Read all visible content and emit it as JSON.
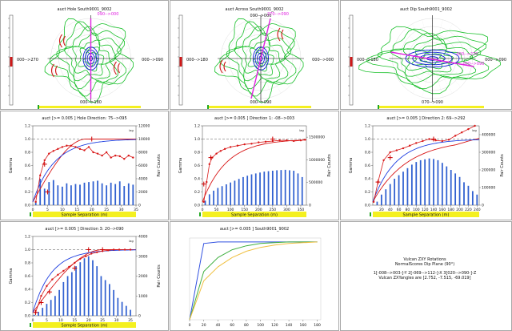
{
  "colors": {
    "contour_green": "#19c02a",
    "contour_blue": "#1020d8",
    "contour_red": "#d01818",
    "magenta": "#e020e0",
    "bar_blue": "#3060d0",
    "model_red": "#d81818",
    "model_blue": "#2040e0",
    "sill_gray": "#555555",
    "yellow_bar": "#f4f020"
  },
  "maps": [
    {
      "title": "auct Hole South9001_9002",
      "label_left": "000-->270",
      "label_right": "000-->090",
      "label_bottom": "000-->180",
      "label_top": "",
      "magenta_labels": [
        "090-->000"
      ]
    },
    {
      "title": "auct Across South9001_9002",
      "label_left": "000-->180",
      "label_right": "000-->000",
      "label_bottom": "000-->090",
      "label_top": "090-->000",
      "magenta_labels": [
        "270-->090"
      ]
    },
    {
      "title": "auct Dip South9001_9002",
      "label_left": "000-->180",
      "label_right": "000-->090",
      "label_bottom": "070-->090",
      "label_top": "",
      "magenta_labels": [
        "000-->270",
        "000-->090"
      ]
    }
  ],
  "charts": [
    {
      "title": "auct [>= 0.005 ] Hole Direction: 75-->095",
      "xlabel": "Sample Separation (m)",
      "ylabel": "Gamma",
      "y2label": "Pair Counts",
      "xlim": [
        0,
        35
      ],
      "xticks": [
        0,
        5,
        10,
        15,
        20,
        25,
        30,
        35
      ],
      "ylim": [
        0,
        1.2
      ],
      "yticks": [
        0,
        0.2,
        0.4,
        0.6,
        0.8,
        1.0,
        1.2
      ],
      "y2lim": [
        0,
        12000
      ],
      "y2ticks": [
        0,
        2000,
        4000,
        6000,
        8000,
        10000,
        12000
      ],
      "y2corner": "lag",
      "sill": 1.0,
      "bars": {
        "x": [
          1,
          2.5,
          4,
          5.5,
          7,
          8.5,
          10,
          11.5,
          13,
          14.5,
          16,
          17.5,
          19,
          20.5,
          22,
          23.5,
          25,
          26.5,
          28,
          29.5,
          31,
          32.5,
          34
        ],
        "counts": [
          600,
          4000,
          2500,
          3500,
          3800,
          3000,
          2800,
          3300,
          3000,
          3200,
          3100,
          3400,
          3500,
          3600,
          3700,
          3300,
          3000,
          3400,
          3200,
          3600,
          2900,
          3300,
          3100
        ]
      },
      "experimental": {
        "x": [
          1,
          2.5,
          4,
          5.5,
          7,
          8.5,
          10,
          11.5,
          13,
          14.5,
          16,
          17.5,
          19,
          20.5,
          22,
          23.5,
          25,
          26.5,
          28,
          29.5,
          31,
          32.5,
          34
        ],
        "gamma": [
          0.05,
          0.45,
          0.68,
          0.78,
          0.82,
          0.85,
          0.88,
          0.9,
          0.9,
          0.88,
          0.85,
          0.83,
          0.88,
          0.8,
          0.78,
          0.75,
          0.8,
          0.72,
          0.75,
          0.74,
          0.7,
          0.75,
          0.72
        ]
      },
      "model": [
        {
          "color": "model_red",
          "nugget": 0.05,
          "sill": 1.0,
          "range": 18,
          "style": "spherical"
        },
        {
          "color": "model_blue",
          "nugget": 0.05,
          "sill": 1.0,
          "range": 22,
          "style": "exp"
        }
      ],
      "crosses": {
        "x": [
          5,
          4,
          20
        ],
        "gamma": [
          0.2,
          0.62,
          1.0
        ]
      }
    },
    {
      "title": "auct [>= 0.005 ] Direction 1: -08-->003",
      "xlabel": "Sample Separation (m)",
      "ylabel": "Gamma",
      "y2label": "Pair Counts",
      "xlim": [
        0,
        370
      ],
      "xticks": [
        0,
        50,
        100,
        150,
        200,
        250,
        300,
        350
      ],
      "ylim": [
        0,
        1.2
      ],
      "yticks": [
        0,
        0.2,
        0.4,
        0.6,
        0.8,
        1.0,
        1.2
      ],
      "y2lim": [
        0,
        1750000
      ],
      "y2ticks": [
        0,
        500000,
        1000000,
        1500000
      ],
      "y2corner": "lag",
      "sill": 1.0,
      "bars": {
        "x": [
          10,
          25,
          40,
          55,
          70,
          85,
          100,
          115,
          130,
          145,
          160,
          175,
          190,
          205,
          220,
          235,
          250,
          265,
          280,
          295,
          310,
          325,
          340,
          355
        ],
        "counts": [
          100000,
          240000,
          320000,
          380000,
          420000,
          460000,
          500000,
          540000,
          580000,
          620000,
          650000,
          680000,
          700000,
          720000,
          740000,
          750000,
          760000,
          770000,
          775000,
          780000,
          770000,
          760000,
          700000,
          620000
        ]
      },
      "experimental": {
        "x": [
          5,
          15,
          25,
          35,
          50,
          65,
          80,
          100,
          125,
          150,
          175,
          200,
          225,
          250,
          275,
          300,
          325,
          350,
          365
        ],
        "gamma": [
          0.05,
          0.35,
          0.62,
          0.72,
          0.78,
          0.82,
          0.85,
          0.88,
          0.9,
          0.92,
          0.93,
          0.95,
          0.96,
          0.97,
          0.98,
          0.98,
          0.97,
          0.98,
          0.99
        ]
      },
      "model": [
        {
          "color": "model_red",
          "nugget": 0.05,
          "sill": 1.0,
          "range": 260,
          "style": "exp"
        }
      ],
      "crosses": {
        "x": [
          5,
          30,
          250
        ],
        "gamma": [
          0.32,
          0.72,
          1.0
        ]
      }
    },
    {
      "title": "auct [>= 0.005 ] Direction 2: 69-->292",
      "xlabel": "Sample Separation (m)",
      "ylabel": "Gamma",
      "y2label": "Pair Counts",
      "xlim": [
        0,
        245
      ],
      "xticks": [
        20,
        40,
        60,
        80,
        100,
        120,
        140,
        160,
        180,
        200,
        220,
        240
      ],
      "ylim": [
        0,
        1.2
      ],
      "yticks": [
        0,
        0.2,
        0.4,
        0.6,
        0.8,
        1.0,
        1.2
      ],
      "y2lim": [
        0,
        450000
      ],
      "y2ticks": [
        0,
        100000,
        200000,
        300000,
        400000
      ],
      "y2corner": "lag",
      "sill": 1.0,
      "bars": {
        "x": [
          10,
          20,
          30,
          40,
          50,
          60,
          70,
          80,
          90,
          100,
          110,
          120,
          130,
          140,
          150,
          160,
          170,
          180,
          190,
          200,
          210,
          220,
          230,
          240
        ],
        "counts": [
          20000,
          60000,
          90000,
          120000,
          150000,
          170000,
          190000,
          210000,
          230000,
          245000,
          255000,
          260000,
          265000,
          262000,
          255000,
          240000,
          220000,
          200000,
          180000,
          160000,
          130000,
          110000,
          80000,
          60000
        ]
      },
      "experimental": {
        "x": [
          2,
          12,
          25,
          40,
          55,
          70,
          85,
          100,
          115,
          130,
          145,
          160,
          175,
          190,
          205,
          220,
          235
        ],
        "gamma": [
          0.05,
          0.35,
          0.68,
          0.8,
          0.83,
          0.86,
          0.9,
          0.94,
          0.97,
          1.0,
          0.98,
          0.97,
          0.99,
          1.05,
          1.1,
          1.15,
          1.2
        ]
      },
      "model": [
        {
          "color": "model_red",
          "nugget": 0.05,
          "sill": 1.2,
          "range": 240,
          "style": "rising"
        },
        {
          "color": "model_blue",
          "nugget": 0.05,
          "sill": 1.0,
          "range": 160,
          "style": "exp"
        }
      ],
      "crosses": {
        "x": [
          12,
          40,
          140
        ],
        "gamma": [
          0.35,
          0.72,
          1.0
        ]
      }
    },
    {
      "title": "auct [>= 0.005 ] Direction 3: 20-->090",
      "xlabel": "Sample Separation (m)",
      "ylabel": "Gamma",
      "y2label": "Pair Counts",
      "xlim": [
        0,
        37
      ],
      "xticks": [
        0,
        5,
        10,
        15,
        20,
        25,
        30,
        35
      ],
      "ylim": [
        0,
        1.2
      ],
      "yticks": [
        0,
        0.2,
        0.4,
        0.6,
        0.8,
        1.0,
        1.2
      ],
      "y2lim": [
        0,
        4000
      ],
      "y2ticks": [
        0,
        1000,
        2000,
        3000,
        4000
      ],
      "y2corner": "lag",
      "sill": 1.0,
      "bars": {
        "x": [
          0.5,
          2,
          3.5,
          5,
          6.5,
          8,
          9.5,
          11,
          12.5,
          14,
          15.5,
          17,
          18.5,
          20,
          21.5,
          23,
          24.5,
          26,
          27.5,
          29,
          30.5,
          32,
          33.5,
          35
        ],
        "counts": [
          50,
          200,
          400,
          600,
          800,
          1000,
          1300,
          1700,
          2000,
          2200,
          2500,
          2700,
          2900,
          3000,
          2800,
          2500,
          2000,
          1800,
          1600,
          1300,
          900,
          700,
          500,
          300
        ]
      },
      "experimental": {
        "x": [
          1,
          3,
          5,
          7,
          9,
          11,
          13,
          15,
          17,
          19,
          21,
          23,
          25,
          27,
          29,
          31,
          33,
          35
        ],
        "gamma": [
          0.05,
          0.3,
          0.45,
          0.55,
          0.62,
          0.68,
          0.74,
          0.8,
          0.86,
          0.9,
          0.94,
          0.96,
          0.98,
          0.99,
          1.0,
          1.0,
          1.0,
          1.0
        ]
      },
      "model": [
        {
          "color": "model_red",
          "nugget": 0.05,
          "sill": 1.0,
          "range": 25,
          "style": "spherical"
        },
        {
          "color": "model_blue",
          "nugget": 0.05,
          "sill": 1.0,
          "range": 20,
          "style": "exp"
        }
      ],
      "crosses": {
        "x": [
          1,
          3,
          6,
          15,
          20,
          25
        ],
        "gamma": [
          0.05,
          0.2,
          0.36,
          0.72,
          1.0,
          1.0
        ]
      }
    }
  ],
  "chart_data": {
    "type": "line",
    "title": "auct [>= 0.005 ] South9001_9002",
    "x": [
      0,
      20,
      40,
      60,
      80,
      100,
      120,
      140,
      160,
      180
    ],
    "xticks": [
      0,
      20,
      40,
      60,
      80,
      100,
      120,
      140,
      160,
      180
    ],
    "xlim": [
      0,
      185
    ],
    "ylim": [
      0,
      1.05
    ],
    "series": [
      {
        "name": "blue",
        "color": "#3050e0",
        "values": [
          0.0,
          0.98,
          1.0,
          1.0,
          1.0,
          1.0,
          1.0,
          1.0,
          1.0,
          1.0
        ]
      },
      {
        "name": "green",
        "color": "#40b040",
        "values": [
          0.0,
          0.62,
          0.8,
          0.9,
          0.95,
          0.98,
          0.99,
          1.0,
          1.0,
          1.0
        ]
      },
      {
        "name": "orange",
        "color": "#f0c040",
        "values": [
          0.0,
          0.5,
          0.68,
          0.8,
          0.88,
          0.93,
          0.96,
          0.98,
          0.99,
          1.0
        ]
      }
    ]
  },
  "note": {
    "lines": [
      "Vulcan ZXY Rotations",
      "NormalScores Dip Plane (90°)",
      "1[-008-->003-]-Y 2[-069-->112-]-X 3[020-->090-]-Z",
      "Vulcan ZXYangles are [2.752, -7.515, -69.019]"
    ]
  }
}
